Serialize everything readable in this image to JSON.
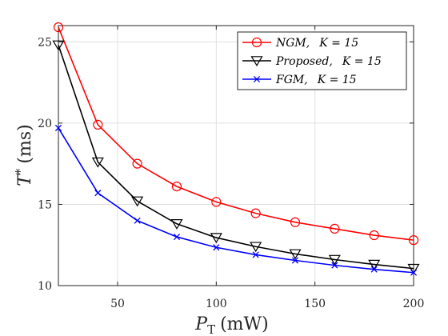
{
  "chart_data": {
    "type": "line",
    "xlabel_main": "P",
    "xlabel_sub": "T",
    "xlabel_unit": "(mW)",
    "ylabel_main": "T",
    "ylabel_sup": "*",
    "ylabel_unit": "(ms)",
    "xlim": [
      20,
      200
    ],
    "ylim": [
      10,
      26
    ],
    "xticks": [
      50,
      100,
      150,
      200
    ],
    "yticks": [
      10,
      15,
      20,
      25
    ],
    "grid": true,
    "legend_position": "top-right",
    "x": [
      20,
      40,
      60,
      80,
      100,
      120,
      140,
      160,
      180,
      200
    ],
    "series": [
      {
        "name_main": "NGM",
        "name_param": "K = 15",
        "color": "#ff0000",
        "marker": "circle",
        "values": [
          25.9,
          19.9,
          17.5,
          16.1,
          15.15,
          14.45,
          13.9,
          13.5,
          13.1,
          12.8
        ]
      },
      {
        "name_main": "Proposed",
        "name_param": "K = 15",
        "color": "#000000",
        "marker": "triangle-down",
        "values": [
          24.8,
          17.6,
          15.2,
          13.8,
          12.95,
          12.4,
          11.95,
          11.6,
          11.3,
          11.05
        ]
      },
      {
        "name_main": "FGM",
        "name_param": "K = 15",
        "color": "#0000ff",
        "marker": "x",
        "values": [
          19.7,
          15.7,
          14.0,
          13.0,
          12.35,
          11.9,
          11.55,
          11.25,
          11.0,
          10.8
        ]
      }
    ]
  }
}
